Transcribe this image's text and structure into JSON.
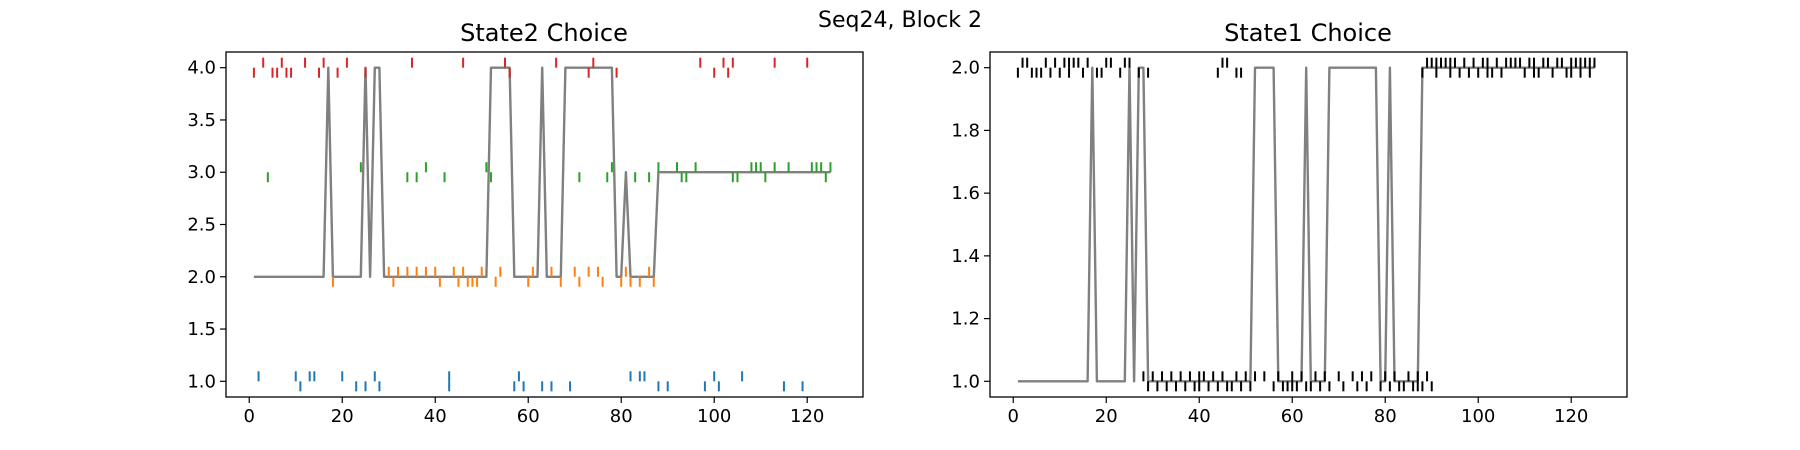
{
  "figure": {
    "suptitle": "Seq24, Block 2"
  },
  "chart_data": [
    {
      "type": "line",
      "title": "State2 Choice",
      "xlabel": "",
      "ylabel": "",
      "xlim": [
        -5,
        132
      ],
      "ylim": [
        0.85,
        4.15
      ],
      "xticks": [
        0,
        20,
        40,
        60,
        80,
        100,
        120
      ],
      "yticks": [
        1.0,
        1.5,
        2.0,
        2.5,
        3.0,
        3.5,
        4.0
      ],
      "ytick_decimals": 1,
      "line": {
        "color": "#808080",
        "x": [
          1,
          16,
          17,
          18,
          24,
          25,
          26,
          27,
          28,
          29,
          51,
          52,
          56,
          57,
          62,
          63,
          64,
          67,
          68,
          78,
          79,
          80,
          81,
          82,
          87,
          88,
          125
        ],
        "y": [
          2,
          2,
          4,
          2,
          2,
          4,
          2,
          4,
          4,
          2,
          2,
          4,
          4,
          2,
          2,
          4,
          2,
          2,
          4,
          4,
          2,
          2,
          3,
          2,
          2,
          3,
          3
        ]
      },
      "markers": [
        {
          "value": 1,
          "color": "#1f77b4",
          "above": [
            2,
            10,
            13,
            14,
            20,
            27,
            43,
            58,
            82,
            84,
            85,
            100,
            106
          ],
          "below": [
            11,
            23,
            25,
            28,
            43,
            57,
            59,
            63,
            65,
            69,
            88,
            90,
            98,
            101,
            115,
            119
          ]
        },
        {
          "value": 2,
          "color": "#ff7f0e",
          "above": [
            30,
            32,
            34,
            36,
            38,
            40,
            44,
            46,
            50,
            54,
            61,
            65,
            70,
            73,
            75,
            81,
            86
          ],
          "below": [
            18,
            31,
            41,
            45,
            47,
            48,
            49,
            53,
            60,
            67,
            71,
            76,
            80,
            82,
            84,
            87
          ]
        },
        {
          "value": 3,
          "color": "#2ca02c",
          "above": [
            24,
            38,
            51,
            78,
            88,
            92,
            96,
            108,
            109,
            110,
            113,
            116,
            121,
            122,
            123,
            125
          ],
          "below": [
            4,
            34,
            36,
            42,
            52,
            71,
            77,
            83,
            86,
            93,
            94,
            104,
            105,
            111,
            124
          ]
        },
        {
          "value": 4,
          "color": "#d62728",
          "above": [
            3,
            7,
            12,
            16,
            21,
            35,
            46,
            55,
            66,
            74,
            97,
            102,
            104,
            113,
            120
          ],
          "below": [
            1,
            5,
            6,
            8,
            9,
            15,
            19,
            25,
            56,
            73,
            79,
            100,
            103
          ]
        }
      ]
    },
    {
      "type": "line",
      "title": "State1 Choice",
      "xlabel": "",
      "ylabel": "",
      "xlim": [
        -5,
        132
      ],
      "ylim": [
        0.95,
        2.05
      ],
      "xticks": [
        0,
        20,
        40,
        60,
        80,
        100,
        120
      ],
      "yticks": [
        1.0,
        1.2,
        1.4,
        1.6,
        1.8,
        2.0
      ],
      "ytick_decimals": 1,
      "line": {
        "color": "#808080",
        "x": [
          1,
          16,
          17,
          18,
          24,
          25,
          26,
          27,
          28,
          29,
          51,
          52,
          56,
          57,
          62,
          63,
          64,
          67,
          68,
          78,
          79,
          80,
          81,
          82,
          87,
          88,
          125
        ],
        "y": [
          1,
          1,
          2,
          1,
          1,
          2,
          1,
          2,
          2,
          1,
          1,
          2,
          2,
          1,
          1,
          2,
          1,
          1,
          2,
          2,
          1,
          1,
          2,
          1,
          1,
          2,
          2
        ]
      },
      "markers": [
        {
          "value": 1,
          "color": "#000000",
          "above": [
            28,
            30,
            32,
            34,
            36,
            38,
            40,
            41,
            43,
            45,
            48,
            50,
            52,
            54,
            57,
            60,
            62,
            65,
            67,
            70,
            73,
            75,
            77,
            80,
            82,
            85,
            87,
            89
          ],
          "below": [
            29,
            31,
            33,
            35,
            37,
            39,
            40,
            42,
            44,
            46,
            47,
            49,
            51,
            56,
            58,
            59,
            60,
            61,
            63,
            64,
            66,
            68,
            71,
            74,
            76,
            79,
            81,
            83,
            84,
            86,
            87,
            88,
            90
          ]
        },
        {
          "value": 2,
          "color": "#000000",
          "above": [
            2,
            3,
            7,
            9,
            11,
            12,
            13,
            14,
            16,
            20,
            21,
            24,
            25,
            45,
            46,
            89,
            90,
            91,
            92,
            93,
            94,
            95,
            97,
            99,
            101,
            102,
            104,
            106,
            107,
            108,
            109,
            111,
            112,
            114,
            115,
            117,
            118,
            120,
            121,
            122,
            123,
            124,
            125
          ],
          "below": [
            1,
            4,
            5,
            6,
            8,
            10,
            12,
            15,
            18,
            19,
            23,
            27,
            29,
            44,
            48,
            49,
            88,
            91,
            94,
            96,
            98,
            100,
            102,
            103,
            105,
            110,
            112,
            113,
            116,
            119,
            120,
            122,
            124
          ]
        }
      ]
    }
  ]
}
